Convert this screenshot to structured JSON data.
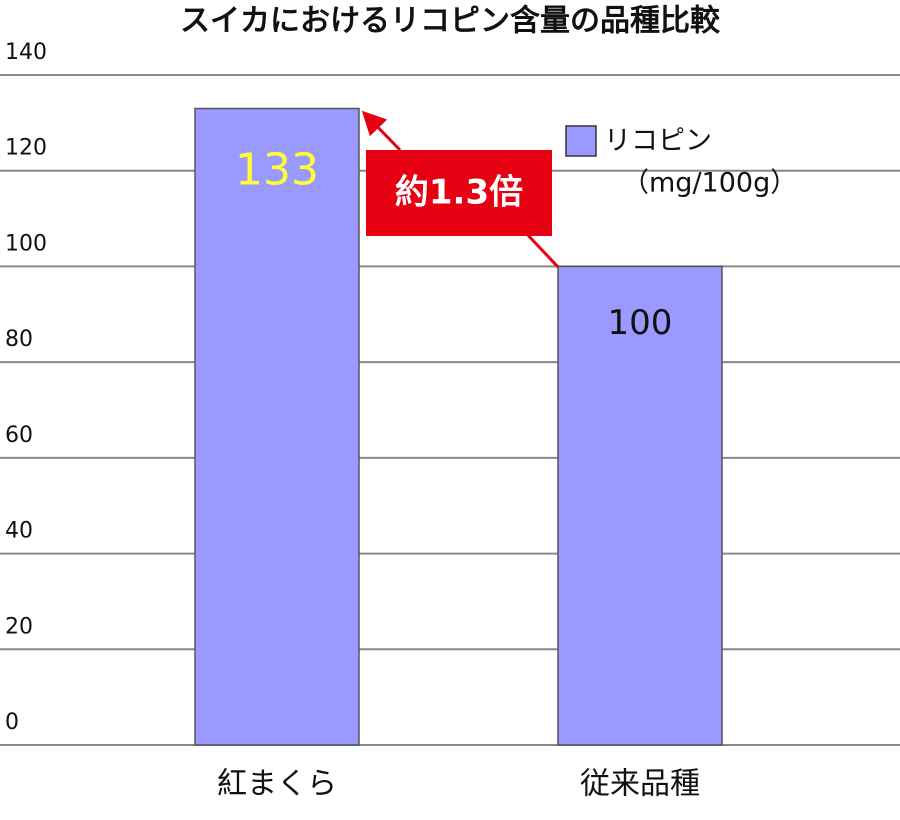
{
  "chart_data": {
    "type": "bar",
    "title": "スイカにおけるリコピン含量の品種比較",
    "categories": [
      "紅まくら",
      "従来品種"
    ],
    "series": [
      {
        "name": "リコピン",
        "unit": "（mg/100g）",
        "color": "#9999ff",
        "values": [
          133,
          100
        ]
      }
    ],
    "ylim": [
      0,
      140
    ],
    "yticks": [
      0,
      20,
      40,
      60,
      80,
      100,
      120,
      140
    ],
    "grid": true,
    "annotation": "約1.3倍"
  }
}
